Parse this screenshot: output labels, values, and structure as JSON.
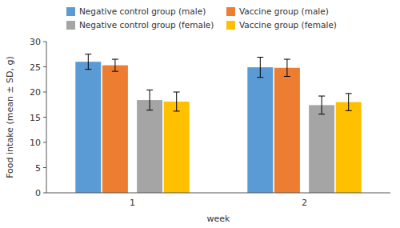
{
  "chart_data": {
    "type": "bar",
    "xlabel": "week",
    "ylabel": "Food intake (mean ± SD, g)",
    "categories": [
      "1",
      "2"
    ],
    "series": [
      {
        "name": "Negative control group (male)",
        "color": "#5B9BD5",
        "values": [
          26.0,
          24.9
        ],
        "errors": [
          1.5,
          2.0
        ]
      },
      {
        "name": "Vaccine group (male)",
        "color": "#ED7D31",
        "values": [
          25.3,
          24.8
        ],
        "errors": [
          1.2,
          1.7
        ]
      },
      {
        "name": "Negative control group (female)",
        "color": "#A5A5A5",
        "values": [
          18.4,
          17.4
        ],
        "errors": [
          2.0,
          1.8
        ]
      },
      {
        "name": "Vaccine group (female)",
        "color": "#FFC000",
        "values": [
          18.1,
          18.0
        ],
        "errors": [
          1.9,
          1.7
        ]
      }
    ],
    "ylim": [
      0,
      30
    ],
    "yticks": [
      0,
      5,
      10,
      15,
      20,
      25,
      30
    ],
    "grid": false,
    "legend": "top"
  }
}
